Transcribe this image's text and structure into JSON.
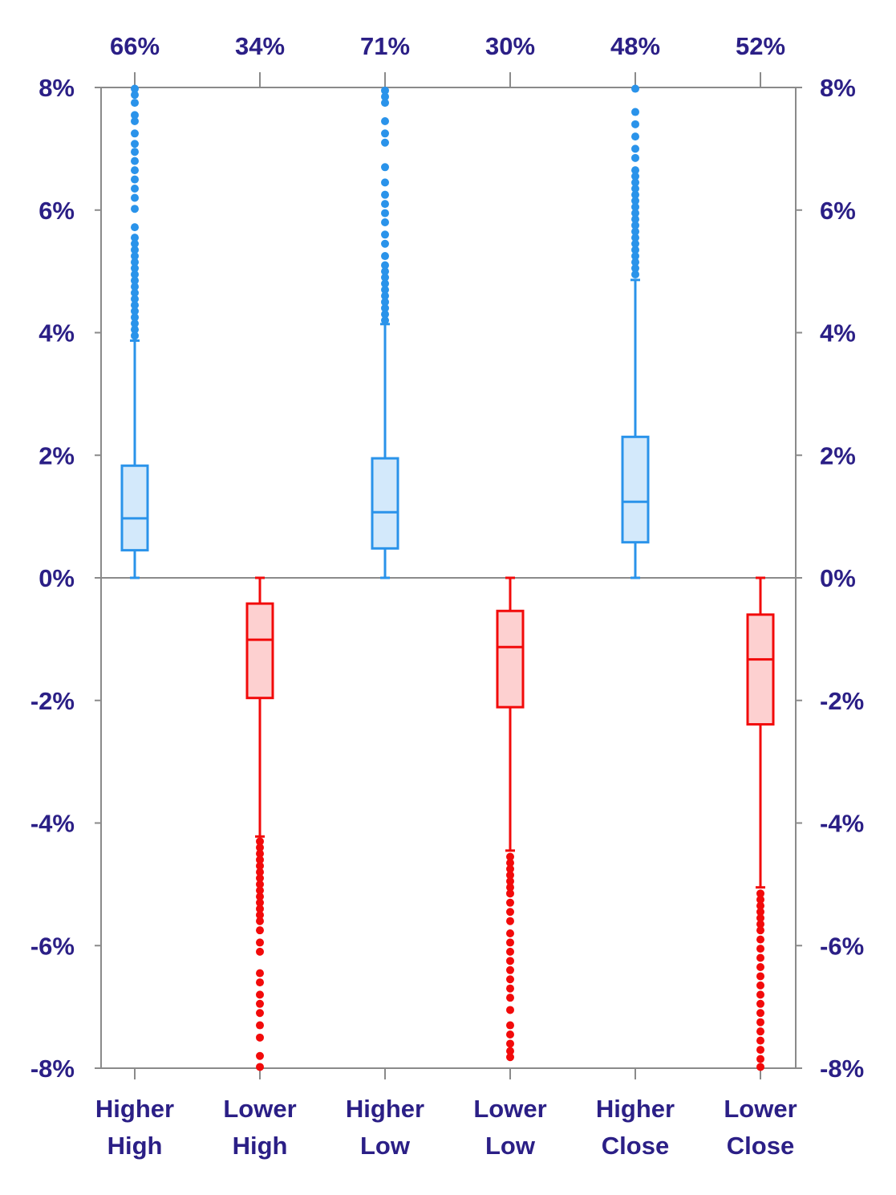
{
  "chart_data": {
    "type": "box",
    "title": "",
    "xlabel": "",
    "ylabel": "",
    "ylim": [
      -8,
      8
    ],
    "y_unit": "%",
    "y_ticks": [
      8,
      6,
      4,
      2,
      0,
      -2,
      -4,
      -6,
      -8
    ],
    "y_tick_labels": [
      "8%",
      "6%",
      "4%",
      "2%",
      "0%",
      "-2%",
      "-4%",
      "-6%",
      "-8%"
    ],
    "grid": false,
    "legend": "none",
    "colors": {
      "label_text": "#2b1f86",
      "axis": "#8a8a8a",
      "positive_stroke": "#2a93ea",
      "positive_fill": "#d3e9fb",
      "negative_stroke": "#f20a0a",
      "negative_fill": "#fdd0d0"
    },
    "categories": [
      {
        "label_line1": "Higher",
        "label_line2": "High",
        "top_label": "66%",
        "sign": "positive",
        "whisker_low": 0,
        "q1": 0.45,
        "median": 0.97,
        "q3": 1.83,
        "whisker_high": 3.87,
        "outliers": [
          3.95,
          4.05,
          4.15,
          4.25,
          4.35,
          4.45,
          4.55,
          4.65,
          4.75,
          4.85,
          4.95,
          5.05,
          5.15,
          5.25,
          5.35,
          5.45,
          5.55,
          5.72,
          6.02,
          6.2,
          6.35,
          6.5,
          6.65,
          6.8,
          6.95,
          7.08,
          7.25,
          7.45,
          7.55,
          7.75,
          7.88,
          7.98
        ]
      },
      {
        "label_line1": "Lower",
        "label_line2": "High",
        "top_label": "34%",
        "sign": "negative",
        "whisker_high": 0,
        "q3": -0.42,
        "median": -1.01,
        "q1": -1.96,
        "whisker_low": -4.22,
        "outliers": [
          -4.3,
          -4.4,
          -4.5,
          -4.6,
          -4.7,
          -4.8,
          -4.9,
          -5.0,
          -5.1,
          -5.2,
          -5.3,
          -5.4,
          -5.5,
          -5.6,
          -5.75,
          -5.95,
          -6.1,
          -6.45,
          -6.6,
          -6.8,
          -6.95,
          -7.1,
          -7.3,
          -7.5,
          -7.8,
          -7.98
        ]
      },
      {
        "label_line1": "Higher",
        "label_line2": "Low",
        "top_label": "71%",
        "sign": "positive",
        "whisker_low": 0,
        "q1": 0.48,
        "median": 1.07,
        "q3": 1.95,
        "whisker_high": 4.14,
        "outliers": [
          4.2,
          4.3,
          4.4,
          4.5,
          4.6,
          4.7,
          4.8,
          4.9,
          5.0,
          5.1,
          5.25,
          5.45,
          5.6,
          5.8,
          5.95,
          6.1,
          6.25,
          6.45,
          6.7,
          7.1,
          7.25,
          7.45,
          7.75,
          7.85,
          7.95
        ]
      },
      {
        "label_line1": "Lower",
        "label_line2": "Low",
        "top_label": "30%",
        "sign": "negative",
        "whisker_high": 0,
        "q3": -0.54,
        "median": -1.13,
        "q1": -2.11,
        "whisker_low": -4.45,
        "outliers": [
          -4.55,
          -4.65,
          -4.75,
          -4.85,
          -4.95,
          -5.05,
          -5.15,
          -5.3,
          -5.45,
          -5.6,
          -5.8,
          -5.95,
          -6.1,
          -6.25,
          -6.4,
          -6.55,
          -6.7,
          -6.85,
          -7.05,
          -7.3,
          -7.45,
          -7.6,
          -7.72,
          -7.82
        ]
      },
      {
        "label_line1": "Higher",
        "label_line2": "Close",
        "top_label": "48%",
        "sign": "positive",
        "whisker_low": 0,
        "q1": 0.58,
        "median": 1.24,
        "q3": 2.3,
        "whisker_high": 4.86,
        "outliers": [
          4.95,
          5.05,
          5.15,
          5.25,
          5.35,
          5.45,
          5.55,
          5.65,
          5.75,
          5.85,
          5.95,
          6.05,
          6.15,
          6.25,
          6.35,
          6.45,
          6.55,
          6.65,
          6.85,
          7.0,
          7.2,
          7.4,
          7.6,
          7.98
        ]
      },
      {
        "label_line1": "Lower",
        "label_line2": "Close",
        "top_label": "52%",
        "sign": "negative",
        "whisker_high": 0,
        "q3": -0.6,
        "median": -1.33,
        "q1": -2.39,
        "whisker_low": -5.05,
        "outliers": [
          -5.15,
          -5.25,
          -5.35,
          -5.45,
          -5.55,
          -5.65,
          -5.75,
          -5.9,
          -6.05,
          -6.2,
          -6.35,
          -6.5,
          -6.65,
          -6.8,
          -6.95,
          -7.1,
          -7.25,
          -7.4,
          -7.55,
          -7.7,
          -7.85,
          -7.98
        ]
      }
    ]
  }
}
